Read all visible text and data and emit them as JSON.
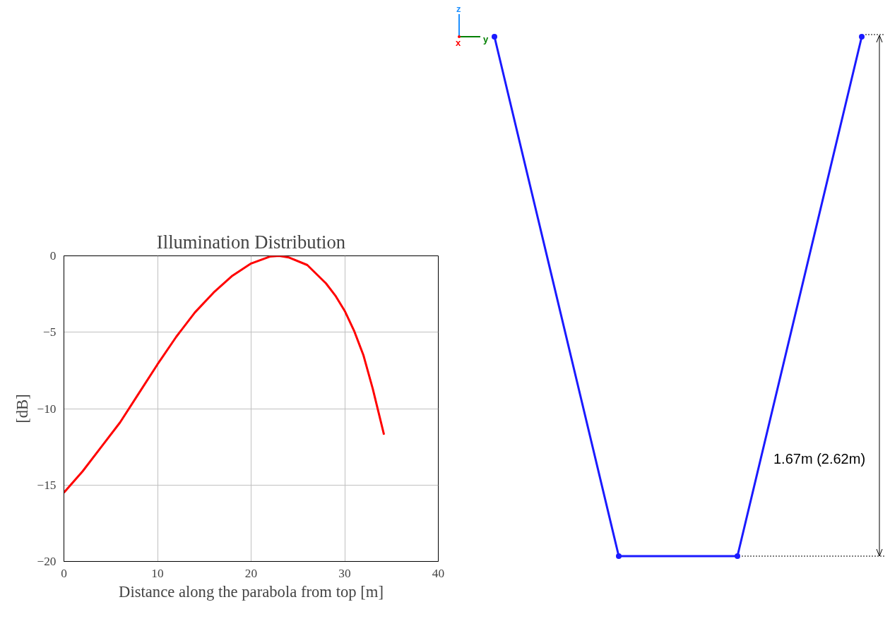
{
  "chart_data": [
    {
      "type": "line",
      "title": "Illumination Distribution",
      "xlabel": "Distance along the parabola from top [m]",
      "ylabel": "[dB]",
      "xlim": [
        0,
        40
      ],
      "xticks": [
        0,
        10,
        20,
        30,
        40
      ],
      "ylim": [
        -20,
        0
      ],
      "yticks": [
        -20,
        -15,
        -10,
        -5,
        0
      ],
      "grid": true,
      "series": [
        {
          "color": "#ff0000",
          "x": [
            0,
            2,
            4,
            6,
            8,
            10,
            12,
            14,
            16,
            18,
            20,
            22,
            23,
            24,
            26,
            28,
            29,
            30,
            31,
            32,
            33,
            34.2
          ],
          "values": [
            -15.5,
            -14.1,
            -12.5,
            -10.9,
            -9.0,
            -7.1,
            -5.3,
            -3.7,
            -2.4,
            -1.3,
            -0.5,
            -0.05,
            0,
            -0.1,
            -0.6,
            -1.8,
            -2.6,
            -3.6,
            -4.9,
            -6.5,
            -8.7,
            -11.7
          ]
        }
      ]
    },
    {
      "type": "other",
      "annotations": [
        "1.67m (2.62m)",
        "z",
        "y",
        "x"
      ]
    }
  ]
}
